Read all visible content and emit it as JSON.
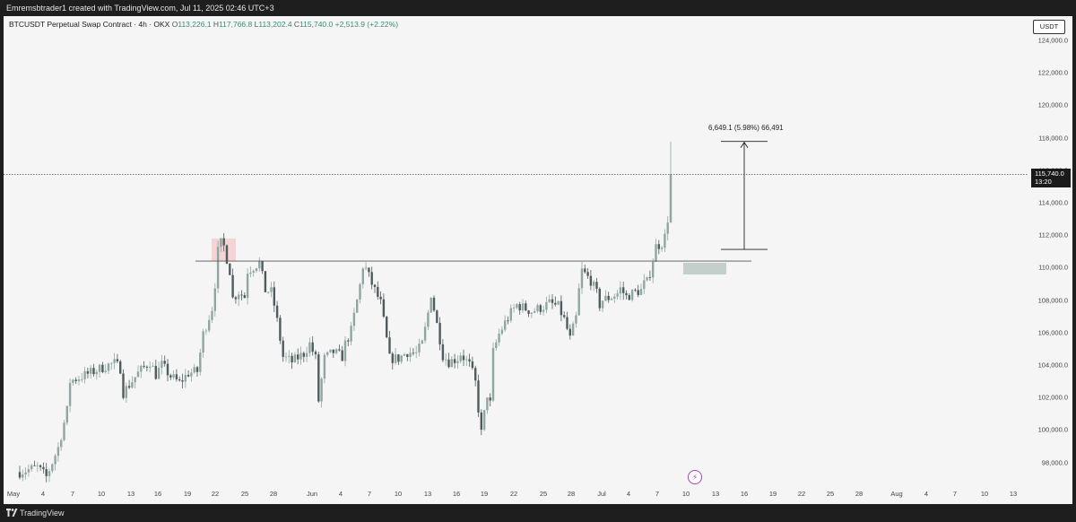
{
  "header": {
    "credit": "Emremsbtrader1 created with TradingView.com, Jul 11, 2025 02:46 UTC+3"
  },
  "legend": {
    "symbol": "BTCUSDT Perpetual Swap Contract · 4h · OKX",
    "open_label": "O",
    "open": "113,226.1",
    "high_label": "H",
    "high": "117,766.8",
    "low_label": "L",
    "low": "113,202.4",
    "close_label": "C",
    "close": "115,740.0",
    "change": "+2,513.9 (+2.22%)"
  },
  "y_axis": {
    "currency": "USDT",
    "ticks": [
      "124,000.0",
      "122,000.0",
      "120,000.0",
      "118,000.0",
      "116,000.0",
      "114,000.0",
      "112,000.0",
      "110,000.0",
      "108,000.0",
      "106,000.0",
      "104,000.0",
      "102,000.0",
      "100,000.0",
      "98,000.0"
    ],
    "last_price": "115,740.0",
    "countdown": "13:20"
  },
  "x_axis": {
    "ticks": [
      "May",
      "4",
      "7",
      "10",
      "13",
      "16",
      "19",
      "22",
      "25",
      "28",
      "Jun",
      "4",
      "7",
      "10",
      "13",
      "16",
      "19",
      "22",
      "25",
      "28",
      "Jul",
      "4",
      "7",
      "10",
      "13",
      "16",
      "19",
      "22",
      "25",
      "28",
      "Aug",
      "4",
      "7",
      "10",
      "13"
    ]
  },
  "annotations": {
    "measure": "6,649.1 (5.98%) 66,491",
    "horizontal_level": 110400,
    "flash_icon": "lightning-icon"
  },
  "colors": {
    "up": "#8fa6a2",
    "down": "#4f5c5e",
    "background": "#f5f5f5",
    "zone_top": "#f3c6c6",
    "zone_bottom": "#b8c6c0"
  },
  "footer": {
    "brand": "TradingView"
  },
  "chart_data": {
    "type": "candlestick",
    "interval": "4h",
    "ylim": [
      97000,
      125500
    ],
    "path": [
      [
        0,
        97400
      ],
      [
        6,
        97700
      ],
      [
        9,
        97100
      ],
      [
        13,
        98900
      ],
      [
        16,
        101200
      ],
      [
        17,
        103000
      ],
      [
        25,
        103600
      ],
      [
        30,
        104000
      ],
      [
        32,
        104100
      ],
      [
        34,
        103800
      ],
      [
        35,
        102300
      ],
      [
        40,
        103500
      ],
      [
        44,
        104200
      ],
      [
        46,
        103400
      ],
      [
        48,
        104000
      ],
      [
        51,
        103300
      ],
      [
        54,
        102900
      ],
      [
        57,
        103500
      ],
      [
        60,
        103600
      ],
      [
        62,
        105900
      ],
      [
        65,
        107500
      ],
      [
        66,
        109000
      ],
      [
        67,
        111000
      ],
      [
        68,
        111500
      ],
      [
        69,
        111300
      ],
      [
        71,
        109800
      ],
      [
        72,
        108100
      ],
      [
        74,
        108500
      ],
      [
        76,
        108200
      ],
      [
        77,
        109800
      ],
      [
        81,
        110300
      ],
      [
        83,
        108600
      ],
      [
        85,
        108500
      ],
      [
        86,
        107700
      ],
      [
        87,
        106700
      ],
      [
        89,
        104500
      ],
      [
        92,
        104200
      ],
      [
        96,
        104700
      ],
      [
        98,
        105300
      ],
      [
        100,
        104400
      ],
      [
        101,
        101800
      ],
      [
        103,
        104400
      ],
      [
        106,
        104800
      ],
      [
        109,
        104500
      ],
      [
        110,
        105300
      ],
      [
        112,
        106100
      ],
      [
        115,
        108900
      ],
      [
        116,
        110100
      ],
      [
        117,
        109900
      ],
      [
        119,
        109000
      ],
      [
        122,
        107800
      ],
      [
        123,
        106700
      ],
      [
        125,
        104400
      ],
      [
        128,
        104400
      ],
      [
        131,
        104800
      ],
      [
        134,
        104700
      ],
      [
        136,
        105300
      ],
      [
        137,
        106200
      ],
      [
        138,
        107200
      ],
      [
        139,
        108400
      ],
      [
        141,
        106500
      ],
      [
        142,
        105600
      ],
      [
        143,
        104600
      ],
      [
        145,
        104200
      ],
      [
        148,
        104400
      ],
      [
        149,
        104700
      ],
      [
        152,
        104000
      ],
      [
        153,
        103500
      ],
      [
        154,
        102900
      ],
      [
        155,
        101300
      ],
      [
        156,
        99800
      ],
      [
        158,
        102200
      ],
      [
        159,
        101600
      ],
      [
        160,
        104800
      ],
      [
        162,
        105900
      ],
      [
        164,
        106600
      ],
      [
        166,
        107200
      ],
      [
        168,
        107700
      ],
      [
        173,
        107300
      ],
      [
        177,
        107600
      ],
      [
        179,
        107800
      ],
      [
        182,
        107600
      ],
      [
        184,
        106800
      ],
      [
        186,
        105600
      ],
      [
        188,
        106900
      ],
      [
        189,
        108600
      ],
      [
        190,
        109800
      ],
      [
        193,
        109200
      ],
      [
        195,
        108400
      ],
      [
        196,
        107700
      ],
      [
        197,
        108000
      ],
      [
        200,
        108200
      ],
      [
        202,
        108400
      ],
      [
        203,
        108700
      ],
      [
        205,
        108200
      ],
      [
        208,
        108500
      ],
      [
        210,
        108600
      ],
      [
        211,
        109000
      ],
      [
        212,
        109100
      ],
      [
        213,
        109700
      ],
      [
        214,
        110500
      ],
      [
        215,
        111300
      ],
      [
        216,
        111400
      ],
      [
        217,
        111500
      ],
      [
        218,
        111900
      ],
      [
        219,
        113000
      ],
      [
        220,
        115740
      ]
    ],
    "wick_scale": 420
  }
}
